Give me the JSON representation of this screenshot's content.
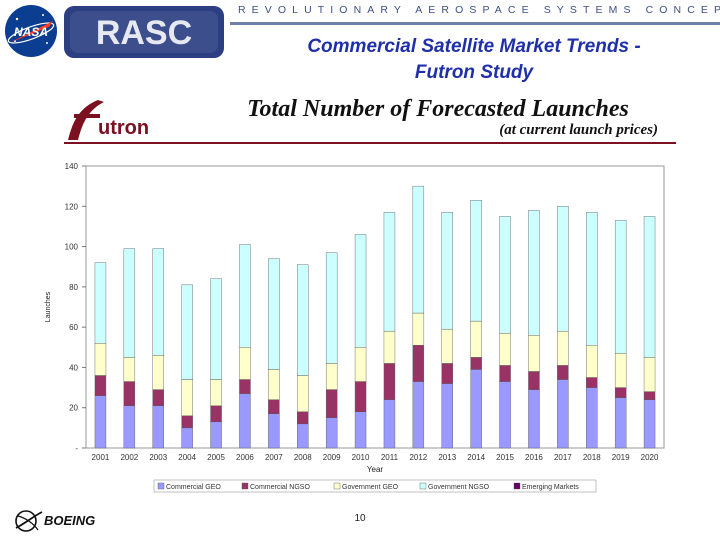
{
  "banner": {
    "tagline": "REVOLUTIONARY AEROSPACE SYSTEMS CONCEPTS",
    "nasa_label": "NASA",
    "rasc_label": "RASC"
  },
  "slide": {
    "title_line1": "Commercial Satellite Market Trends -",
    "title_line2": "Futron Study",
    "futron_label": "utron",
    "page_number": "10",
    "boeing_label": "BOEING"
  },
  "chart_data": {
    "type": "bar",
    "stacked": true,
    "title": "Total Number of Forecasted Launches",
    "subtitle": "(at current launch prices)",
    "xlabel": "Year",
    "ylabel": "Launches",
    "ylim": [
      0,
      140
    ],
    "yticks": [
      "-",
      "20",
      "40",
      "60",
      "80",
      "100",
      "120",
      "140"
    ],
    "categories": [
      "2001",
      "2002",
      "2003",
      "2004",
      "2005",
      "2006",
      "2007",
      "2008",
      "2009",
      "2010",
      "2011",
      "2012",
      "2013",
      "2014",
      "2015",
      "2016",
      "2017",
      "2018",
      "2019",
      "2020"
    ],
    "series": [
      {
        "name": "Commercial GEO",
        "color": "#9999ff",
        "values": [
          26,
          21,
          21,
          10,
          13,
          27,
          17,
          12,
          15,
          18,
          24,
          33,
          32,
          39,
          33,
          29,
          34,
          30,
          25,
          24
        ]
      },
      {
        "name": "Commercial NGSO",
        "color": "#993366",
        "values": [
          10,
          12,
          8,
          6,
          8,
          7,
          7,
          6,
          14,
          15,
          18,
          18,
          10,
          6,
          8,
          9,
          7,
          5,
          5,
          4
        ]
      },
      {
        "name": "Government GEO",
        "color": "#ffffcc",
        "values": [
          16,
          12,
          17,
          18,
          13,
          16,
          15,
          18,
          13,
          17,
          16,
          16,
          17,
          18,
          16,
          18,
          17,
          16,
          17,
          17
        ]
      },
      {
        "name": "Government NGSO",
        "color": "#ccffff",
        "values": [
          40,
          54,
          53,
          47,
          50,
          51,
          55,
          55,
          55,
          56,
          59,
          63,
          58,
          60,
          58,
          62,
          62,
          66,
          66,
          70
        ]
      },
      {
        "name": "Emerging Markets",
        "color": "#660066",
        "values": [
          0,
          0,
          0,
          0,
          0,
          0,
          0,
          0,
          0,
          0,
          0,
          0,
          0,
          0,
          0,
          0,
          0,
          0,
          0,
          0
        ]
      }
    ],
    "grid": false,
    "legend_position": "bottom"
  }
}
